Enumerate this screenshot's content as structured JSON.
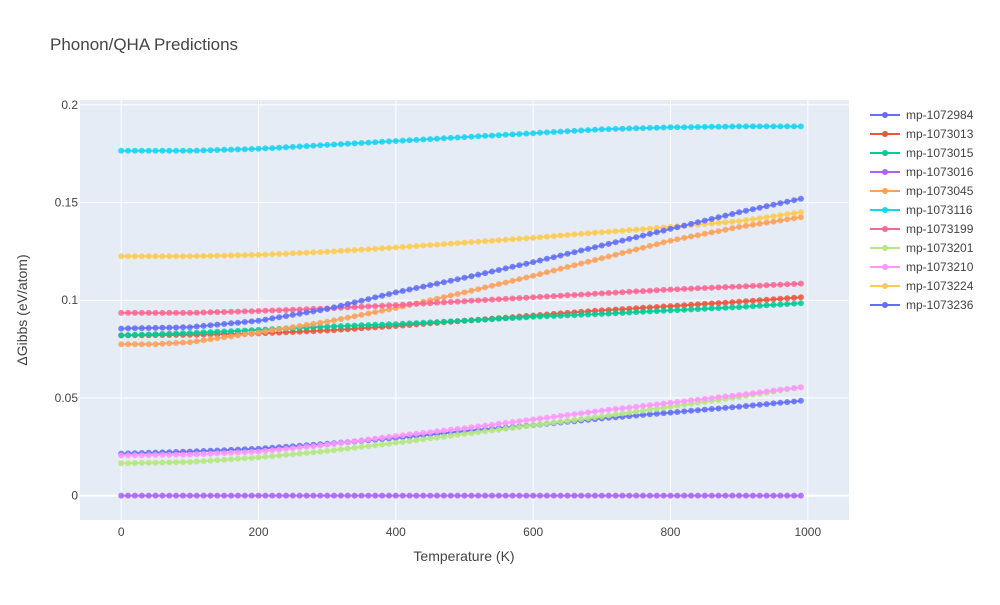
{
  "chart_data": {
    "type": "line",
    "title": "Phonon/QHA Predictions",
    "xlabel": "Temperature (K)",
    "ylabel": "ΔGibbs (eV/atom)",
    "xlim": [
      -60,
      1060
    ],
    "ylim": [
      -0.0125,
      0.2025
    ],
    "x_ticks": [
      0,
      200,
      400,
      600,
      800,
      1000
    ],
    "x_tick_labels": [
      "0",
      "200",
      "400",
      "600",
      "800",
      "1000"
    ],
    "y_ticks": [
      0,
      0.05,
      0.1,
      0.15,
      0.2
    ],
    "y_tick_labels": [
      "0",
      "0.05",
      "0.1",
      "0.15",
      "0.2"
    ],
    "grid": true,
    "legend_position": "right",
    "x": {
      "start": 0,
      "stop": 990,
      "step": 10
    },
    "series": [
      {
        "name": "mp-1072984",
        "color": "#636efa",
        "curve": [
          [
            0,
            0.0215
          ],
          [
            100,
            0.0225
          ],
          [
            200,
            0.024
          ],
          [
            300,
            0.0265
          ],
          [
            400,
            0.0295
          ],
          [
            500,
            0.033
          ],
          [
            600,
            0.036
          ],
          [
            700,
            0.0395
          ],
          [
            800,
            0.0425
          ],
          [
            900,
            0.0455
          ],
          [
            990,
            0.0485
          ]
        ]
      },
      {
        "name": "mp-1073013",
        "color": "#EF553B",
        "curve": [
          [
            0,
            0.082
          ],
          [
            100,
            0.0823
          ],
          [
            200,
            0.083
          ],
          [
            300,
            0.0845
          ],
          [
            400,
            0.0868
          ],
          [
            500,
            0.0895
          ],
          [
            600,
            0.0922
          ],
          [
            700,
            0.0948
          ],
          [
            800,
            0.097
          ],
          [
            900,
            0.0992
          ],
          [
            990,
            0.1015
          ]
        ]
      },
      {
        "name": "mp-1073015",
        "color": "#00cc96",
        "curve": [
          [
            0,
            0.082
          ],
          [
            100,
            0.0832
          ],
          [
            200,
            0.0848
          ],
          [
            300,
            0.0865
          ],
          [
            400,
            0.0878
          ],
          [
            500,
            0.0895
          ],
          [
            600,
            0.0915
          ],
          [
            700,
            0.093
          ],
          [
            800,
            0.0948
          ],
          [
            900,
            0.0965
          ],
          [
            990,
            0.0985
          ]
        ]
      },
      {
        "name": "mp-1073016",
        "color": "#ab63fa",
        "curve": [
          [
            0,
            0.0
          ],
          [
            990,
            0.0
          ]
        ]
      },
      {
        "name": "mp-1073045",
        "color": "#FFA15A",
        "curve": [
          [
            0,
            0.0775
          ],
          [
            50,
            0.0775
          ],
          [
            100,
            0.0785
          ],
          [
            200,
            0.0835
          ],
          [
            300,
            0.089
          ],
          [
            400,
            0.096
          ],
          [
            500,
            0.104
          ],
          [
            600,
            0.1125
          ],
          [
            700,
            0.1215
          ],
          [
            800,
            0.1305
          ],
          [
            900,
            0.1375
          ],
          [
            990,
            0.1425
          ]
        ]
      },
      {
        "name": "mp-1073116",
        "color": "#19d3f3",
        "curve": [
          [
            0,
            0.1765
          ],
          [
            100,
            0.1765
          ],
          [
            200,
            0.1775
          ],
          [
            300,
            0.1795
          ],
          [
            400,
            0.1815
          ],
          [
            500,
            0.1835
          ],
          [
            600,
            0.1855
          ],
          [
            700,
            0.1875
          ],
          [
            800,
            0.1885
          ],
          [
            900,
            0.189
          ],
          [
            990,
            0.189
          ]
        ]
      },
      {
        "name": "mp-1073199",
        "color": "#FF6692",
        "curve": [
          [
            0,
            0.0935
          ],
          [
            100,
            0.0935
          ],
          [
            200,
            0.0945
          ],
          [
            300,
            0.0958
          ],
          [
            400,
            0.0975
          ],
          [
            500,
            0.0995
          ],
          [
            600,
            0.1015
          ],
          [
            700,
            0.1035
          ],
          [
            800,
            0.1055
          ],
          [
            900,
            0.107
          ],
          [
            990,
            0.1085
          ]
        ]
      },
      {
        "name": "mp-1073201",
        "color": "#B6E880",
        "curve": [
          [
            0,
            0.0165
          ],
          [
            100,
            0.0172
          ],
          [
            200,
            0.0195
          ],
          [
            300,
            0.0228
          ],
          [
            400,
            0.027
          ],
          [
            500,
            0.0315
          ],
          [
            600,
            0.036
          ],
          [
            700,
            0.0405
          ],
          [
            800,
            0.0455
          ],
          [
            900,
            0.0505
          ],
          [
            990,
            0.0555
          ]
        ]
      },
      {
        "name": "mp-1073210",
        "color": "#FF97FF",
        "curve": [
          [
            0,
            0.0205
          ],
          [
            100,
            0.021
          ],
          [
            200,
            0.0225
          ],
          [
            300,
            0.026
          ],
          [
            400,
            0.0305
          ],
          [
            500,
            0.0345
          ],
          [
            600,
            0.039
          ],
          [
            700,
            0.0435
          ],
          [
            800,
            0.0475
          ],
          [
            900,
            0.0515
          ],
          [
            990,
            0.0555
          ]
        ]
      },
      {
        "name": "mp-1073224",
        "color": "#FECB52",
        "curve": [
          [
            0,
            0.1225
          ],
          [
            100,
            0.1225
          ],
          [
            200,
            0.1232
          ],
          [
            300,
            0.1248
          ],
          [
            400,
            0.127
          ],
          [
            500,
            0.1295
          ],
          [
            600,
            0.132
          ],
          [
            700,
            0.1348
          ],
          [
            800,
            0.1375
          ],
          [
            900,
            0.1405
          ],
          [
            990,
            0.145
          ]
        ]
      },
      {
        "name": "mp-1073236",
        "color": "#636efa",
        "curve": [
          [
            0,
            0.0855
          ],
          [
            100,
            0.0862
          ],
          [
            200,
            0.0895
          ],
          [
            300,
            0.0955
          ],
          [
            400,
            0.104
          ],
          [
            500,
            0.1115
          ],
          [
            600,
            0.1195
          ],
          [
            700,
            0.128
          ],
          [
            800,
            0.1365
          ],
          [
            900,
            0.145
          ],
          [
            990,
            0.152
          ]
        ]
      }
    ]
  }
}
